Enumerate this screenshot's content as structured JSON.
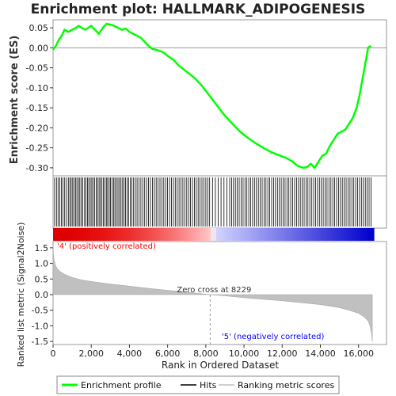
{
  "chart_data": {
    "type": "line",
    "title": "Enrichment plot: HALLMARK_ADIPOGENESIS",
    "ylabel_top": "Enrichment score (ES)",
    "ylabel_bottom": "Ranked list metric (Signal2Noise)",
    "xlabel": "Rank in Ordered Dataset",
    "xlim": [
      0,
      16800
    ],
    "x_ticks": [
      0,
      2000,
      4000,
      6000,
      8000,
      10000,
      12000,
      14000,
      16000
    ],
    "x_tick_labels": [
      "0",
      "2,000",
      "4,000",
      "6,000",
      "8,000",
      "10,000",
      "12,000",
      "14,000",
      "16,000"
    ],
    "es_ylim": [
      -0.32,
      0.07
    ],
    "es_ticks": [
      0.05,
      0.0,
      -0.05,
      -0.1,
      -0.15,
      -0.2,
      -0.25,
      -0.3
    ],
    "es_tick_labels": [
      "0.05",
      "0.00",
      "-0.05",
      "-0.10",
      "-0.15",
      "-0.20",
      "-0.25",
      "-0.30"
    ],
    "metric_ylim": [
      -1.6,
      1.7
    ],
    "metric_ticks": [
      1.5,
      1.0,
      0.5,
      0.0,
      -0.5,
      -1.0,
      -1.5
    ],
    "metric_tick_labels": [
      "1.5",
      "1.0",
      "0.5",
      "0.0",
      "-0.5",
      "-1.0",
      "-1.5"
    ],
    "colors": {
      "es_line": "#00ff00",
      "hits": "#000000",
      "metric_fill": "#c0c0c0",
      "positive_label": "#ff0000",
      "negative_label": "#0000ff",
      "zero_line": "#aaaaaa",
      "bar_positive": "#dd0000",
      "bar_negative": "#0000cc"
    },
    "enrichment_profile": {
      "x": [
        0,
        150,
        300,
        450,
        600,
        800,
        1000,
        1200,
        1350,
        1500,
        1700,
        1850,
        2000,
        2200,
        2400,
        2600,
        2800,
        3000,
        3200,
        3400,
        3600,
        3800,
        4000,
        4200,
        4400,
        4600,
        4800,
        5000,
        5200,
        5400,
        5600,
        5800,
        6000,
        6300,
        6600,
        7000,
        7400,
        7800,
        8200,
        8600,
        9000,
        9400,
        9800,
        10200,
        10600,
        11000,
        11400,
        11800,
        12200,
        12500,
        12800,
        13100,
        13300,
        13500,
        13700,
        13900,
        14100,
        14300,
        14500,
        14700,
        14900,
        15100,
        15300,
        15500,
        15700,
        15900,
        16050,
        16200,
        16350,
        16500,
        16650
      ],
      "y": [
        -0.005,
        0.005,
        0.02,
        0.03,
        0.045,
        0.04,
        0.045,
        0.05,
        0.055,
        0.05,
        0.045,
        0.05,
        0.055,
        0.045,
        0.035,
        0.05,
        0.06,
        0.058,
        0.055,
        0.05,
        0.045,
        0.048,
        0.04,
        0.035,
        0.03,
        0.025,
        0.015,
        0.005,
        -0.003,
        -0.005,
        -0.008,
        -0.012,
        -0.02,
        -0.03,
        -0.045,
        -0.06,
        -0.075,
        -0.095,
        -0.12,
        -0.145,
        -0.17,
        -0.19,
        -0.21,
        -0.225,
        -0.238,
        -0.25,
        -0.26,
        -0.268,
        -0.275,
        -0.283,
        -0.295,
        -0.3,
        -0.298,
        -0.29,
        -0.3,
        -0.285,
        -0.27,
        -0.265,
        -0.245,
        -0.23,
        -0.215,
        -0.21,
        -0.205,
        -0.19,
        -0.175,
        -0.15,
        -0.12,
        -0.08,
        -0.04,
        0.0,
        0.005
      ]
    },
    "hits": [
      80,
      180,
      260,
      350,
      430,
      520,
      610,
      700,
      800,
      880,
      950,
      1030,
      1100,
      1180,
      1250,
      1330,
      1400,
      1480,
      1560,
      1650,
      1720,
      1800,
      1870,
      1950,
      2030,
      2100,
      2180,
      2260,
      2330,
      2410,
      2480,
      2560,
      2640,
      2710,
      2790,
      2860,
      2940,
      3010,
      3090,
      3170,
      3240,
      3320,
      3400,
      3480,
      3560,
      3640,
      3720,
      3800,
      3880,
      3960,
      4040,
      4130,
      4220,
      4310,
      4400,
      4500,
      4600,
      4700,
      4800,
      4900,
      5000,
      5100,
      5200,
      5300,
      5400,
      5500,
      5600,
      5700,
      5800,
      5900,
      6000,
      6100,
      6200,
      6300,
      6400,
      6500,
      6600,
      6700,
      6800,
      6900,
      7000,
      7100,
      7200,
      7300,
      7400,
      7500,
      7600,
      7700,
      7800,
      7900,
      8000,
      8100,
      8200,
      8350,
      8500,
      8650,
      8800,
      8950,
      9100,
      9250,
      9350,
      9450,
      9550,
      9650,
      9750,
      9850,
      9950,
      10050,
      10150,
      10250,
      10350,
      10450,
      10550,
      10650,
      10750,
      10850,
      10950,
      11050,
      11150,
      11250,
      11350,
      11450,
      11550,
      11650,
      11750,
      11850,
      11950,
      12050,
      12150,
      12250,
      12350,
      12450,
      12550,
      12650,
      12750,
      12850,
      12950,
      13050,
      13150,
      13250,
      13350,
      13450,
      13550,
      13650,
      13750,
      13850,
      13950,
      14050,
      14150,
      14250,
      14350,
      14450,
      14550,
      14650,
      14750,
      14850,
      14950,
      15050,
      15150,
      15250,
      15350,
      15450,
      15550,
      15650,
      15750,
      15850,
      15950,
      16050,
      16150,
      16250,
      16350,
      16450,
      16550,
      16650
    ],
    "metric_curve": {
      "x": [
        0,
        20,
        60,
        120,
        200,
        350,
        600,
        1000,
        1500,
        2000,
        3000,
        4000,
        5000,
        6000,
        7000,
        8229,
        9000,
        10000,
        11000,
        12000,
        13000,
        14000,
        15000,
        15500,
        16000,
        16300,
        16500,
        16600,
        16680,
        16720
      ],
      "y": [
        1.6,
        1.3,
        1.1,
        0.95,
        0.85,
        0.75,
        0.65,
        0.55,
        0.47,
        0.42,
        0.34,
        0.27,
        0.2,
        0.14,
        0.08,
        0.0,
        -0.04,
        -0.1,
        -0.15,
        -0.2,
        -0.26,
        -0.32,
        -0.42,
        -0.5,
        -0.6,
        -0.72,
        -0.85,
        -1.0,
        -1.25,
        -1.5
      ]
    },
    "annotations": {
      "zero_cross": "Zero cross at 8229",
      "zero_cross_x": 8229,
      "positive": "'4' (positively correlated)",
      "negative": "'5' (negatively correlated)"
    },
    "legend": {
      "placement": "bottom",
      "entries": [
        "Enrichment profile",
        "Hits",
        "Ranking metric scores"
      ]
    }
  }
}
